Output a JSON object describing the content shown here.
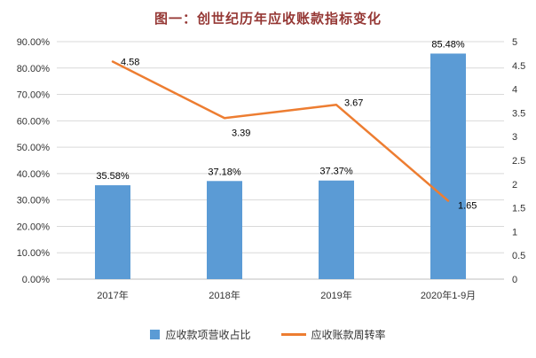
{
  "page": {
    "title": "图一：创世纪历年应收账款指标变化",
    "title_color": "#953734"
  },
  "chart_data": {
    "type": "bar",
    "subtype": "combo-bar-line",
    "title": "图一：创世纪历年应收账款指标变化",
    "categories": [
      "2017年",
      "2018年",
      "2019年",
      "2020年1-9月"
    ],
    "series": [
      {
        "name": "应收款项营收占比",
        "type": "bar",
        "axis": "left",
        "color": "#5B9BD5",
        "values": [
          35.58,
          37.18,
          37.37,
          85.48
        ],
        "labels": [
          "35.58%",
          "37.18%",
          "37.37%",
          "85.48%"
        ]
      },
      {
        "name": "应收账款周转率",
        "type": "line",
        "axis": "right",
        "color": "#ED7D31",
        "values": [
          4.58,
          3.39,
          3.67,
          1.65
        ],
        "labels": [
          "4.58",
          "3.39",
          "3.67",
          "1.65"
        ]
      }
    ],
    "left_axis": {
      "min": 0,
      "max": 90,
      "step": 10,
      "ticks": [
        "0.00%",
        "10.00%",
        "20.00%",
        "30.00%",
        "40.00%",
        "50.00%",
        "60.00%",
        "70.00%",
        "80.00%",
        "90.00%"
      ]
    },
    "right_axis": {
      "min": 0,
      "max": 5,
      "step": 0.5,
      "ticks": [
        "0",
        "0.5",
        "1",
        "1.5",
        "2",
        "2.5",
        "3",
        "3.5",
        "4",
        "4.5",
        "5"
      ]
    },
    "grid": true,
    "legend_position": "bottom",
    "grid_color": "#d9d9d9",
    "axis_line_color": "#bfbfbf",
    "tick_label_color": "#333333",
    "data_label_color": "#000000"
  }
}
